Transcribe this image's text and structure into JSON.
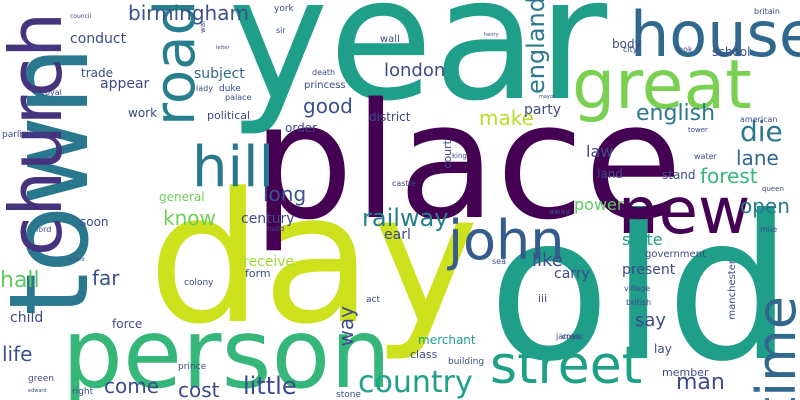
{
  "colors": {
    "background": "#ffffff",
    "palette": [
      "#440154",
      "#46337e",
      "#365c8d",
      "#277f8e",
      "#1fa187",
      "#4ac16d",
      "#a0da39",
      "#d0e11c"
    ]
  },
  "words": [
    {
      "id": "year",
      "text": "year",
      "color": "#1f9e89"
    },
    {
      "id": "old",
      "text": "old",
      "color": "#1f9e89"
    },
    {
      "id": "day",
      "text": "day",
      "color": "#cde11d"
    },
    {
      "id": "place",
      "text": "place",
      "color": "#440154"
    },
    {
      "id": "town",
      "text": "town",
      "color": "#2a788e"
    },
    {
      "id": "person",
      "text": "person",
      "color": "#35b779"
    },
    {
      "id": "church",
      "text": "church",
      "color": "#46337e"
    },
    {
      "id": "great",
      "text": "great",
      "color": "#7ad151"
    },
    {
      "id": "house",
      "text": "house",
      "color": "#31688e"
    },
    {
      "id": "street",
      "text": "street",
      "color": "#1fa187"
    },
    {
      "id": "new",
      "text": "new",
      "color": "#440154"
    },
    {
      "id": "john",
      "text": "john",
      "color": "#365c8d"
    },
    {
      "id": "time",
      "text": "time",
      "color": "#31688e"
    },
    {
      "id": "hill",
      "text": "hill",
      "color": "#2a788e"
    },
    {
      "id": "road",
      "text": "road",
      "color": "#277f8e"
    },
    {
      "id": "country",
      "text": "country",
      "color": "#1fa187"
    },
    {
      "id": "die",
      "text": "die",
      "color": "#2a788e"
    },
    {
      "id": "birmingham",
      "text": "birmingham",
      "color": "#3b528b"
    },
    {
      "id": "england",
      "text": "england",
      "color": "#2a788e"
    },
    {
      "id": "english",
      "text": "english",
      "color": "#2a788e"
    },
    {
      "id": "london",
      "text": "london",
      "color": "#3e4a89"
    },
    {
      "id": "railway",
      "text": "railway",
      "color": "#277f8e"
    },
    {
      "id": "little",
      "text": "little",
      "color": "#3e4a89"
    },
    {
      "id": "man",
      "text": "man",
      "color": "#3e4a89"
    },
    {
      "id": "forest",
      "text": "forest",
      "color": "#35b779"
    },
    {
      "id": "lane",
      "text": "lane",
      "color": "#31688e"
    },
    {
      "id": "open",
      "text": "open",
      "color": "#2a788e"
    },
    {
      "id": "life",
      "text": "life",
      "color": "#3b528b"
    },
    {
      "id": "hall",
      "text": "hall",
      "color": "#5ec962"
    },
    {
      "id": "cost",
      "text": "cost",
      "color": "#3e4a89"
    },
    {
      "id": "come",
      "text": "come",
      "color": "#3e4a89"
    },
    {
      "id": "make",
      "text": "make",
      "color": "#b5de2b"
    },
    {
      "id": "good",
      "text": "good",
      "color": "#3b528b"
    },
    {
      "id": "long",
      "text": "long",
      "color": "#3b528b"
    },
    {
      "id": "know",
      "text": "know",
      "color": "#6ece58"
    },
    {
      "id": "far",
      "text": "far",
      "color": "#3b528b"
    },
    {
      "id": "way",
      "text": "way",
      "color": "#3e4a89"
    },
    {
      "id": "like",
      "text": "like",
      "color": "#3e4a89"
    },
    {
      "id": "say",
      "text": "say",
      "color": "#3e4a89"
    },
    {
      "id": "law",
      "text": "law",
      "color": "#3e4a89"
    },
    {
      "id": "state",
      "text": "state",
      "color": "#1f9e89"
    },
    {
      "id": "power",
      "text": "power",
      "color": "#5ec962"
    },
    {
      "id": "party",
      "text": "party",
      "color": "#3e4a89"
    },
    {
      "id": "earl",
      "text": "earl",
      "color": "#3e4a89"
    },
    {
      "id": "present",
      "text": "present",
      "color": "#3e4a89"
    },
    {
      "id": "carry",
      "text": "carry",
      "color": "#3e4a89"
    },
    {
      "id": "receive",
      "text": "receive",
      "color": "#a0da39"
    },
    {
      "id": "appear",
      "text": "appear",
      "color": "#3e4a89"
    },
    {
      "id": "conduct",
      "text": "conduct",
      "color": "#3e4a89"
    },
    {
      "id": "subject",
      "text": "subject",
      "color": "#31688e"
    },
    {
      "id": "trade",
      "text": "trade",
      "color": "#3e4a89"
    },
    {
      "id": "century",
      "text": "century",
      "color": "#3e4a89"
    },
    {
      "id": "soon",
      "text": "soon",
      "color": "#3e4a89"
    },
    {
      "id": "child",
      "text": "child",
      "color": "#3e4a89"
    },
    {
      "id": "force",
      "text": "force",
      "color": "#3e4a89"
    },
    {
      "id": "general",
      "text": "general",
      "color": "#6ece58"
    },
    {
      "id": "order",
      "text": "order",
      "color": "#3e4a89"
    },
    {
      "id": "district",
      "text": "district",
      "color": "#3e4a89"
    },
    {
      "id": "work",
      "text": "work",
      "color": "#3e4a89"
    },
    {
      "id": "stand",
      "text": "stand",
      "color": "#3e4a89"
    },
    {
      "id": "land",
      "text": "land",
      "color": "#3e4a89"
    },
    {
      "id": "merchant",
      "text": "merchant",
      "color": "#1f9e89"
    },
    {
      "id": "lay",
      "text": "lay",
      "color": "#3e4a89"
    },
    {
      "id": "member",
      "text": "member",
      "color": "#3e4a89"
    },
    {
      "id": "form",
      "text": "form",
      "color": "#3e4a89"
    },
    {
      "id": "body",
      "text": "body",
      "color": "#3e4a89"
    },
    {
      "id": "school",
      "text": "school",
      "color": "#3e4a89"
    },
    {
      "id": "class",
      "text": "class",
      "color": "#3e4a89"
    },
    {
      "id": "iii",
      "text": "iii",
      "color": "#3e4a89"
    },
    {
      "id": "court",
      "text": "court",
      "color": "#3e4a89"
    },
    {
      "id": "political",
      "text": "political",
      "color": "#3e4a89"
    },
    {
      "id": "government",
      "text": "government",
      "color": "#3e4a89"
    },
    {
      "id": "manchester",
      "text": "manchester",
      "color": "#3e4a89"
    },
    {
      "id": "princess",
      "text": "princess",
      "color": "#3e4a89"
    },
    {
      "id": "wall",
      "text": "wall",
      "color": "#3e4a89"
    },
    {
      "id": "palace",
      "text": "palace",
      "color": "#3e4a89"
    },
    {
      "id": "duke",
      "text": "duke",
      "color": "#3e4a89"
    },
    {
      "id": "lady",
      "text": "lady",
      "color": "#3e4a89"
    },
    {
      "id": "death",
      "text": "death",
      "color": "#3e4a89"
    },
    {
      "id": "colony",
      "text": "colony",
      "color": "#3e4a89"
    },
    {
      "id": "act",
      "text": "act",
      "color": "#3e4a89"
    },
    {
      "id": "prince",
      "text": "prince",
      "color": "#3e4a89"
    },
    {
      "id": "building",
      "text": "building",
      "color": "#3e4a89"
    },
    {
      "id": "stone",
      "text": "stone",
      "color": "#3e4a89"
    },
    {
      "id": "right",
      "text": "right",
      "color": "#3e4a89"
    },
    {
      "id": "green",
      "text": "green",
      "color": "#3e4a89"
    },
    {
      "id": "cross",
      "text": "cross",
      "color": "#3e4a89"
    },
    {
      "id": "james",
      "text": "james",
      "color": "#3e4a89"
    },
    {
      "id": "village",
      "text": "village",
      "color": "#3e4a89"
    },
    {
      "id": "british",
      "text": "british",
      "color": "#3e4a89"
    },
    {
      "id": "parliament",
      "text": "parliament",
      "color": "#3e4a89"
    },
    {
      "id": "royal",
      "text": "royal",
      "color": "#3e4a89"
    },
    {
      "id": "george",
      "text": "george",
      "color": "#3e4a89"
    },
    {
      "id": "lord",
      "text": "lord",
      "color": "#3e4a89"
    },
    {
      "id": "castle",
      "text": "castle",
      "color": "#3e4a89"
    },
    {
      "id": "king",
      "text": "king",
      "color": "#3e4a89"
    },
    {
      "id": "water",
      "text": "water",
      "color": "#3e4a89"
    },
    {
      "id": "tower",
      "text": "tower",
      "color": "#3e4a89"
    },
    {
      "id": "american",
      "text": "american",
      "color": "#3e4a89"
    },
    {
      "id": "queen",
      "text": "queen",
      "color": "#3e4a89"
    },
    {
      "id": "mile",
      "text": "mile",
      "color": "#3e4a89"
    },
    {
      "id": "city",
      "text": "city",
      "color": "#3e4a89"
    },
    {
      "id": "look",
      "text": "look",
      "color": "#3e4a89"
    },
    {
      "id": "britain",
      "text": "britain",
      "color": "#3e4a89"
    },
    {
      "id": "york",
      "text": "york",
      "color": "#3e4a89"
    },
    {
      "id": "sir",
      "text": "sir",
      "color": "#3e4a89"
    },
    {
      "id": "war",
      "text": "war",
      "color": "#3e4a89"
    },
    {
      "id": "council",
      "text": "council",
      "color": "#3e4a89"
    },
    {
      "id": "letter",
      "text": "letter",
      "color": "#3e4a89"
    },
    {
      "id": "henry",
      "text": "henry",
      "color": "#3e4a89"
    },
    {
      "id": "mayor",
      "text": "mayor",
      "color": "#3e4a89"
    },
    {
      "id": "sea",
      "text": "sea",
      "color": "#3e4a89"
    },
    {
      "id": "build",
      "text": "build",
      "color": "#3e4a89"
    },
    {
      "id": "richard",
      "text": "richard",
      "color": "#3e4a89"
    },
    {
      "id": "away",
      "text": "away",
      "color": "#3e4a89"
    },
    {
      "id": "edward",
      "text": "edward",
      "color": "#3e4a89"
    }
  ]
}
